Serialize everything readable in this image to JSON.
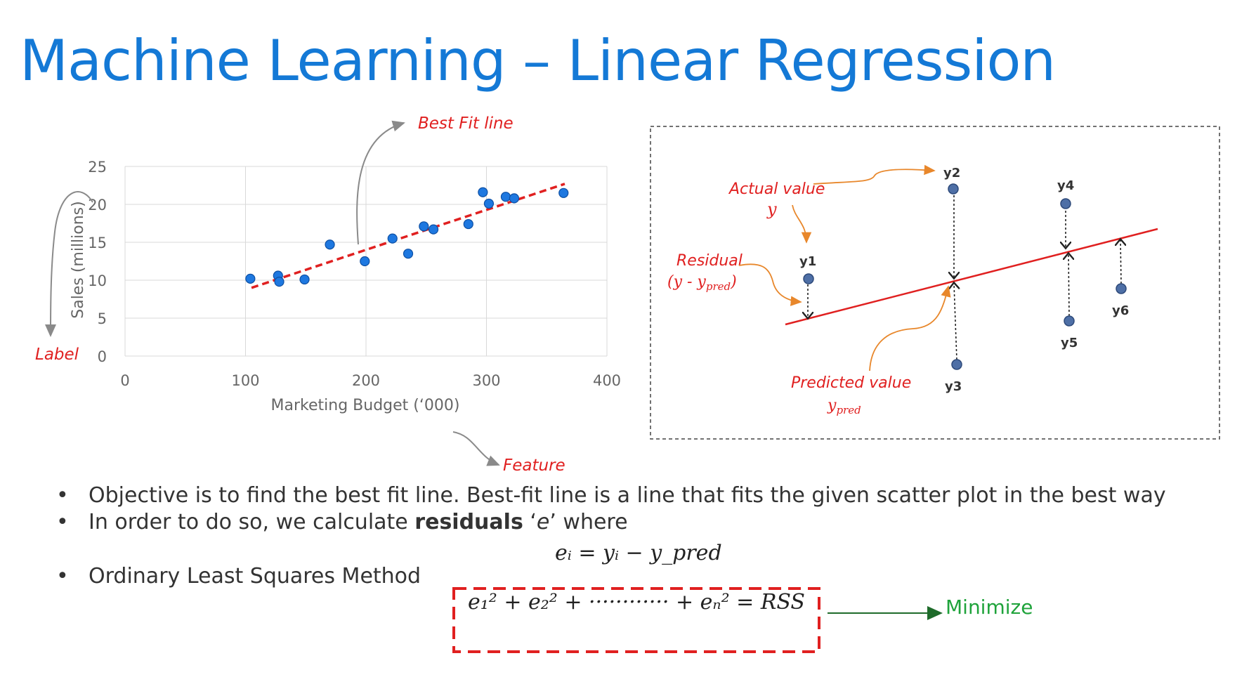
{
  "title": "Machine Learning – Linear Regression",
  "chart_data": {
    "type": "scatter",
    "xlabel": "Marketing Budget (‘000)",
    "ylabel": "Sales (millions)",
    "xlim": [
      0,
      400
    ],
    "ylim": [
      0,
      25
    ],
    "x_ticks": [
      "0",
      "100",
      "200",
      "300",
      "400"
    ],
    "y_ticks": [
      "0",
      "5",
      "10",
      "15",
      "20",
      "25"
    ],
    "grid": true,
    "points": [
      [
        104,
        10.2
      ],
      [
        127,
        10.6
      ],
      [
        128,
        9.8
      ],
      [
        149,
        10.1
      ],
      [
        170,
        14.7
      ],
      [
        199,
        12.5
      ],
      [
        222,
        15.5
      ],
      [
        235,
        13.5
      ],
      [
        248,
        17.1
      ],
      [
        256,
        16.7
      ],
      [
        285,
        17.4
      ],
      [
        297,
        21.6
      ],
      [
        302,
        20.1
      ],
      [
        316,
        21.0
      ],
      [
        323,
        20.8
      ],
      [
        364,
        21.5
      ]
    ],
    "fit_line": [
      [
        105,
        9.0
      ],
      [
        365,
        22.7
      ]
    ],
    "point_color": "#1e78e0",
    "fit_color": "#e02020"
  },
  "annotations": {
    "best_fit": "Best Fit line",
    "label": "Label",
    "feature": "Feature"
  },
  "residual_diagram": {
    "actual_value": "Actual value",
    "actual_y": "y",
    "residual": "Residual",
    "residual_formula": "(y - y",
    "predicted_value": "Predicted  value",
    "predicted_y": "y",
    "pred_sub": "pred",
    "point_labels": [
      "y1",
      "y2",
      "y3",
      "y4",
      "y5",
      "y6"
    ]
  },
  "bullets": [
    {
      "dot": "•",
      "text": "Objective is to find the best fit line. Best-fit line is a line that fits the given scatter plot in the best way"
    },
    {
      "dot": "•",
      "pre": "In order to do so, we calculate ",
      "bold": "residuals",
      "mid": " ‘",
      "e": "e",
      "post": "’ where"
    },
    {
      "dot": "•",
      "text": "Ordinary Least Squares Method"
    }
  ],
  "equation1": "eᵢ = yᵢ − y_pred",
  "equation2": "e₁² + e₂² + ············ + eₙ² = RSS",
  "minimize": "Minimize"
}
